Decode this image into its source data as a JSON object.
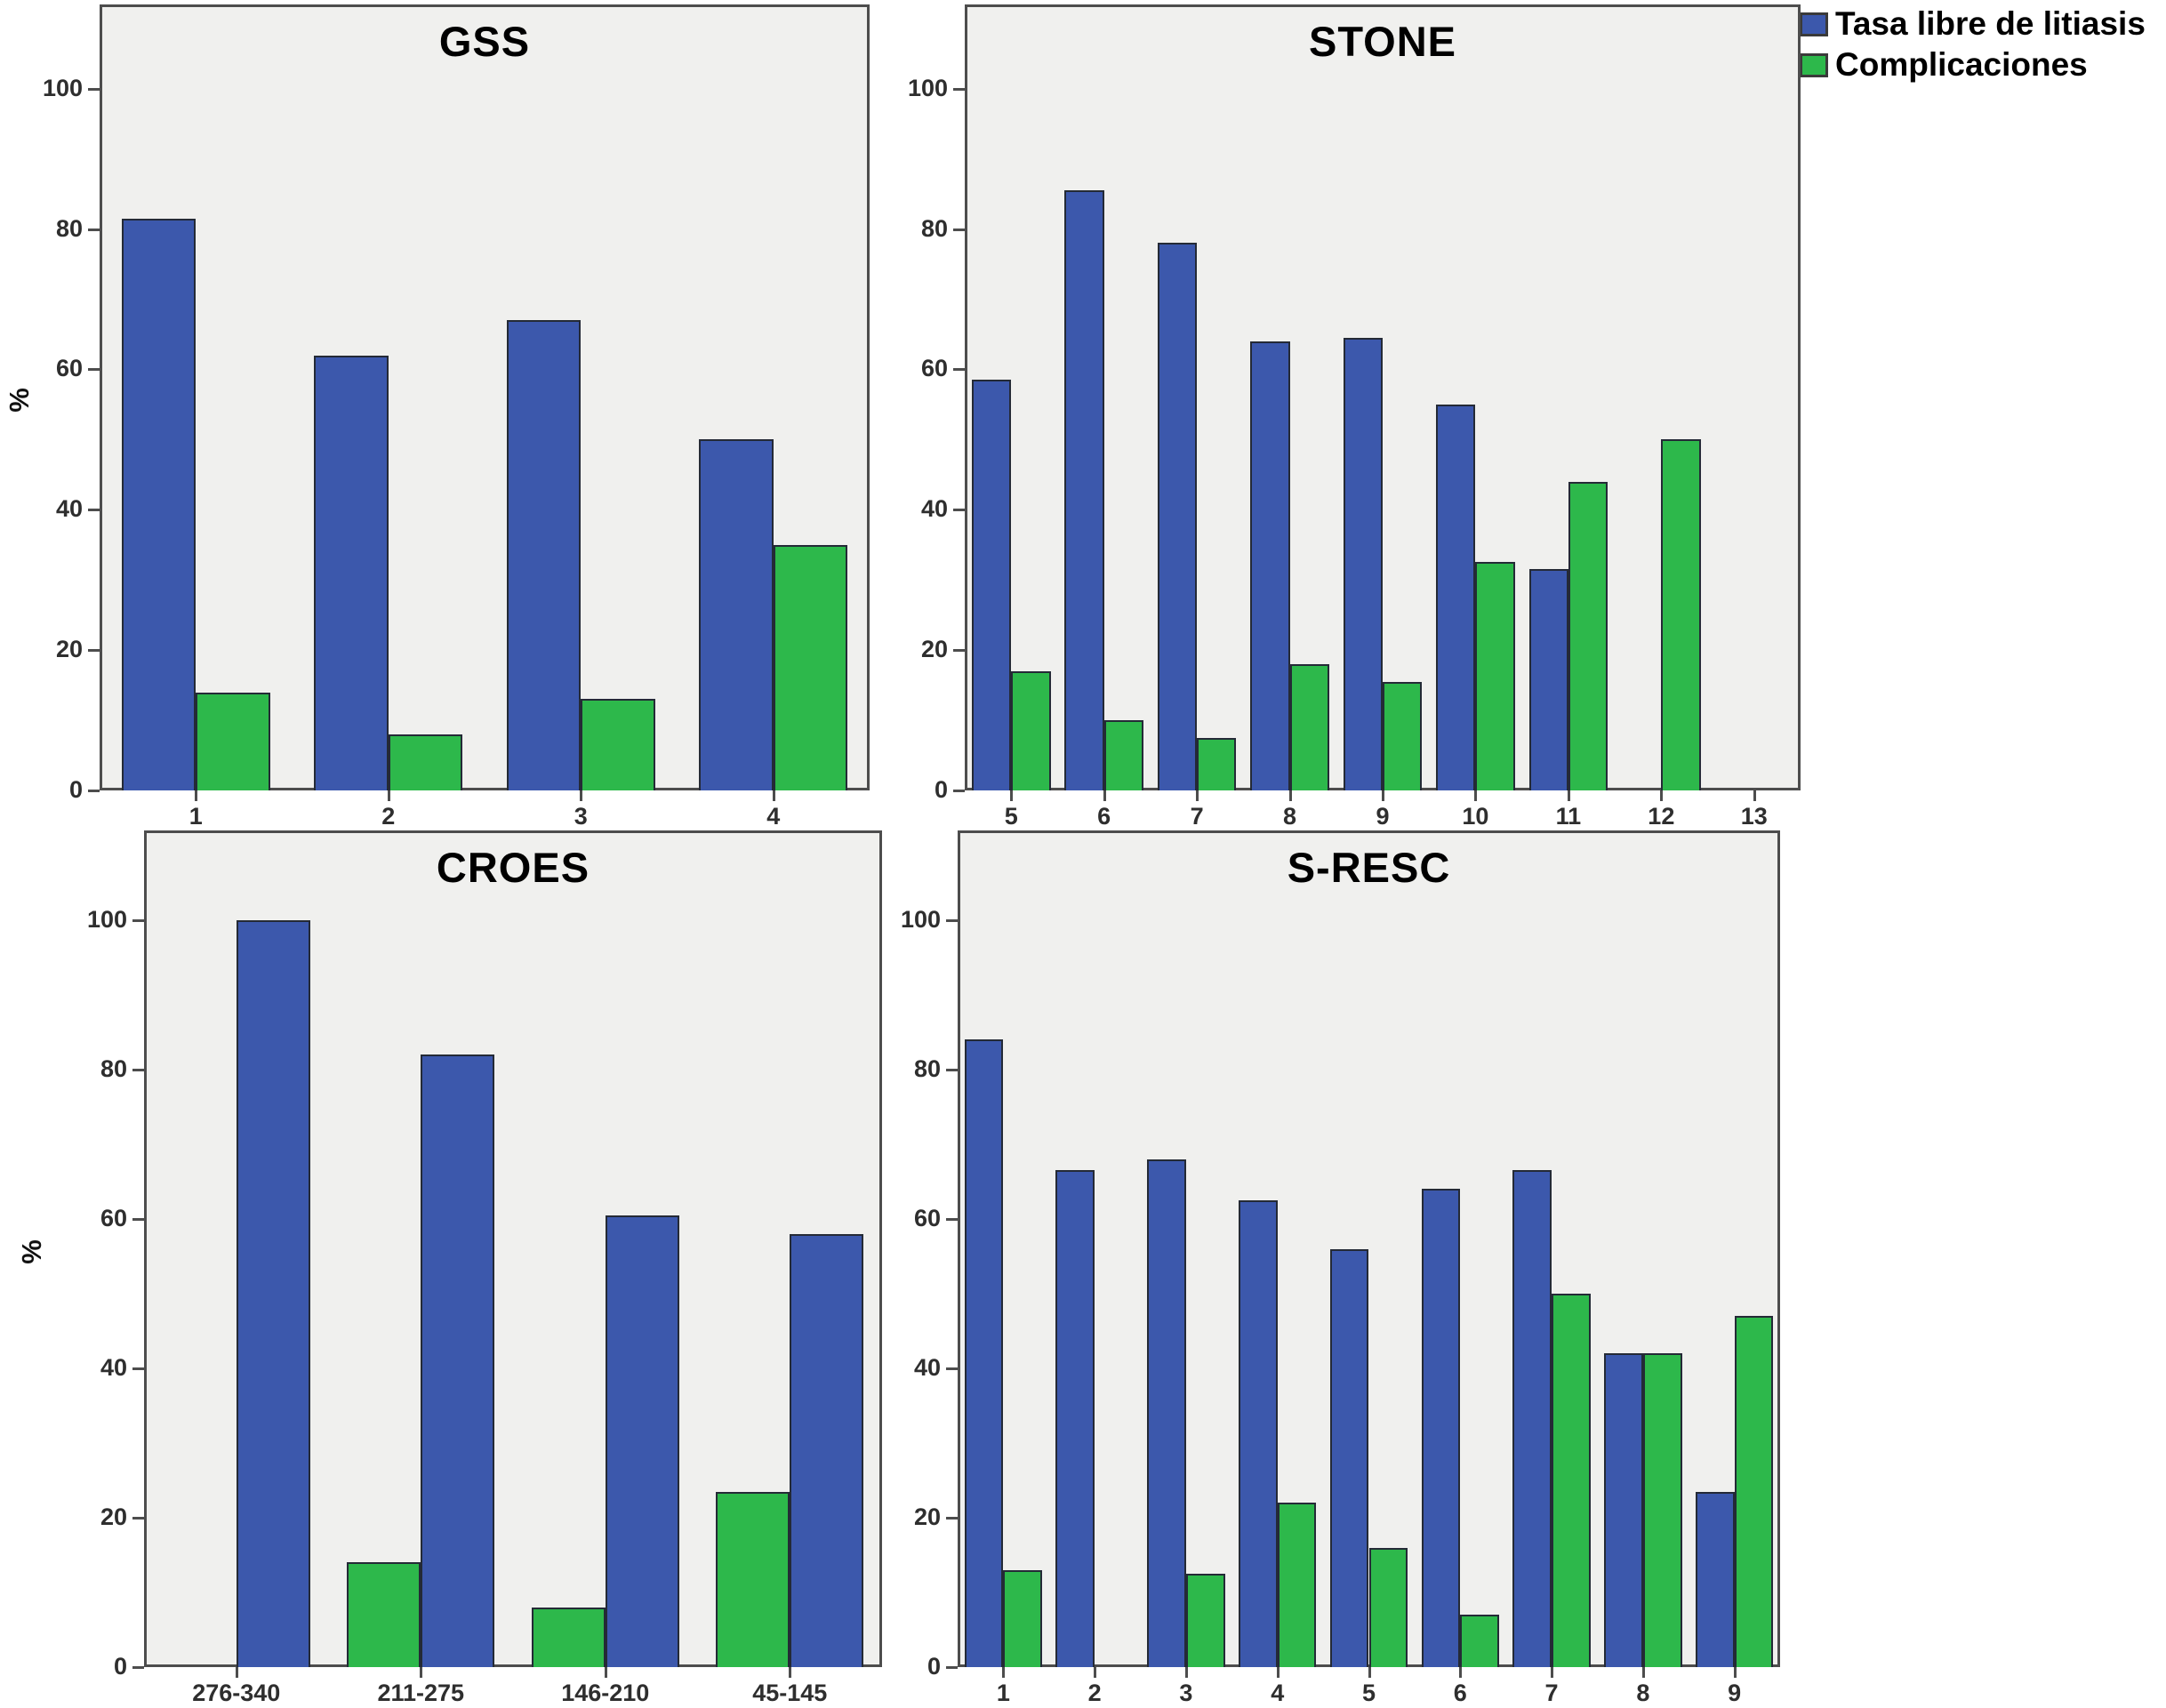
{
  "legend": {
    "position": "top-right",
    "items": [
      {
        "label": "Tasa libre de litiasis",
        "color": "#3c58ac"
      },
      {
        "label": "Complicaciones",
        "color": "#2db84b"
      }
    ]
  },
  "axes": {
    "ylabel": "%",
    "yticks": [
      0,
      20,
      40,
      60,
      80,
      100
    ],
    "ymax": 112
  },
  "chart_data": [
    {
      "type": "bar",
      "title": "GSS",
      "ylabel": "%",
      "ylim": [
        0,
        112
      ],
      "categories": [
        "1",
        "2",
        "3",
        "4"
      ],
      "series": [
        {
          "name": "Tasa libre de litiasis",
          "color": "#3c58ac",
          "values": [
            81.5,
            62,
            67,
            50
          ]
        },
        {
          "name": "Complicaciones",
          "color": "#2db84b",
          "values": [
            14,
            8,
            13,
            35
          ]
        }
      ]
    },
    {
      "type": "bar",
      "title": "STONE",
      "ylim": [
        0,
        112
      ],
      "categories": [
        "5",
        "6",
        "7",
        "8",
        "9",
        "10",
        "11",
        "12",
        "13"
      ],
      "series": [
        {
          "name": "Tasa libre de litiasis",
          "color": "#3c58ac",
          "values": [
            58.5,
            85.5,
            78,
            64,
            64.5,
            55,
            31.5,
            null,
            null
          ]
        },
        {
          "name": "Complicaciones",
          "color": "#2db84b",
          "values": [
            17,
            10,
            7.5,
            18,
            15.5,
            32.5,
            44,
            50,
            null
          ]
        }
      ]
    },
    {
      "type": "bar",
      "title": "CROES",
      "ylabel": "%",
      "ylim": [
        0,
        112
      ],
      "categories": [
        "276-340",
        "211-275",
        "146-210",
        "45-145"
      ],
      "series": [
        {
          "name": "Complicaciones",
          "color": "#2db84b",
          "values": [
            null,
            14,
            8,
            23.5
          ]
        },
        {
          "name": "Tasa libre de litiasis",
          "color": "#3c58ac",
          "values": [
            100,
            82,
            60.5,
            58
          ]
        }
      ]
    },
    {
      "type": "bar",
      "title": "S-RESC",
      "ylim": [
        0,
        112
      ],
      "categories": [
        "1",
        "2",
        "3",
        "4",
        "5",
        "6",
        "7",
        "8",
        "9"
      ],
      "series": [
        {
          "name": "Tasa libre de litiasis",
          "color": "#3c58ac",
          "values": [
            84,
            66.5,
            68,
            62.5,
            56,
            64,
            66.5,
            42,
            23.5
          ]
        },
        {
          "name": "Complicaciones",
          "color": "#2db84b",
          "values": [
            13,
            null,
            12.5,
            22,
            16,
            7,
            50,
            42,
            47
          ]
        }
      ]
    }
  ]
}
